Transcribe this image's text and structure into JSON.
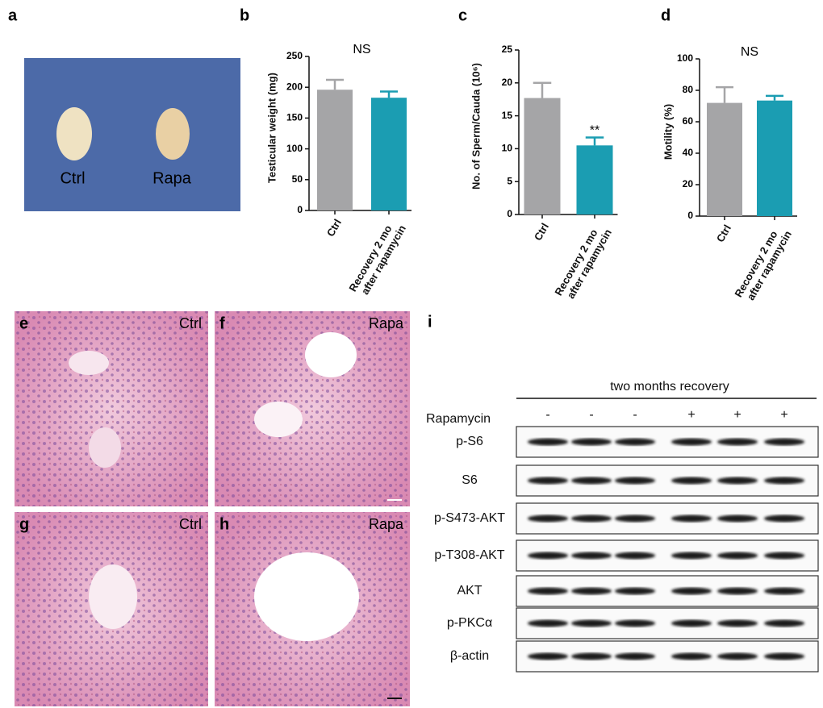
{
  "chart_data": [
    {
      "type": "bar",
      "panel": "b",
      "annotation": "NS",
      "y_label": "Testicular weight (mg)",
      "categories": [
        "Ctrl",
        "Recovery 2 mo after rapamycin"
      ],
      "values": [
        196,
        183
      ],
      "errors": [
        16,
        10
      ],
      "colors": [
        "#a5a5a7",
        "#1b9db2"
      ],
      "ylim": [
        0,
        250
      ],
      "yticks": [
        0,
        50,
        100,
        150,
        200,
        250
      ]
    },
    {
      "type": "bar",
      "panel": "c",
      "y_label": "No. of Sperm/Cauda (10⁶)",
      "categories": [
        "Ctrl",
        "Recovery 2 mo after rapamycin"
      ],
      "values": [
        17.7,
        10.5
      ],
      "errors": [
        2.3,
        1.2
      ],
      "value_annotations": [
        null,
        "**"
      ],
      "colors": [
        "#a5a5a7",
        "#1b9db2"
      ],
      "ylim": [
        0,
        25
      ],
      "yticks": [
        0,
        5,
        10,
        15,
        20,
        25
      ]
    },
    {
      "type": "bar",
      "panel": "d",
      "annotation": "NS",
      "y_label": "Motility (%)",
      "categories": [
        "Ctrl",
        "Recovery 2 mo after rapamycin"
      ],
      "values": [
        72,
        73.5
      ],
      "errors": [
        10,
        3
      ],
      "colors": [
        "#a5a5a7",
        "#1b9db2"
      ],
      "ylim": [
        0,
        100
      ],
      "yticks": [
        0,
        20,
        40,
        60,
        80,
        100
      ]
    }
  ],
  "photo": {
    "panel": "a",
    "labels": [
      "Ctrl",
      "Rapa"
    ]
  },
  "histology": [
    {
      "panel": "e",
      "label": "Ctrl"
    },
    {
      "panel": "f",
      "label": "Rapa"
    },
    {
      "panel": "g",
      "label": "Ctrl"
    },
    {
      "panel": "h",
      "label": "Rapa"
    }
  ],
  "blot": {
    "panel": "i",
    "header": "two months recovery",
    "treatment": "Rapamycin",
    "signs": [
      "-",
      "-",
      "-",
      "+",
      "+",
      "+"
    ],
    "rows": [
      "p-S6",
      "S6",
      "p-S473-AKT",
      "p-T308-AKT",
      "AKT",
      "p-PKCα",
      "β-actin"
    ]
  }
}
